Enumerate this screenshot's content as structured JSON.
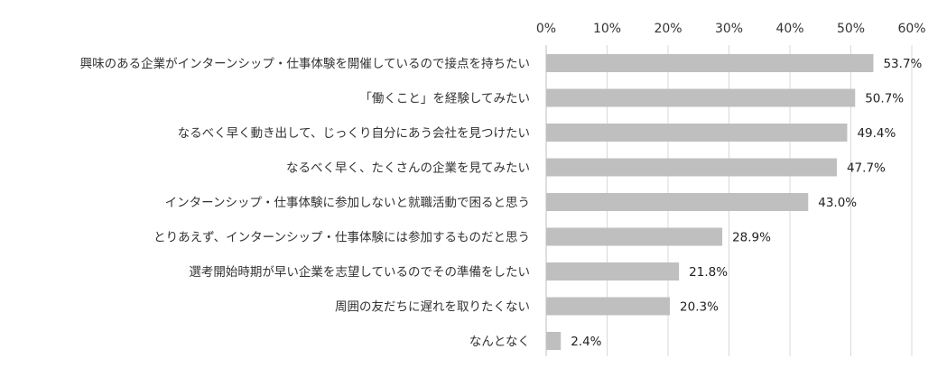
{
  "chart_data": {
    "type": "bar",
    "orientation": "horizontal",
    "categories": [
      "興味のある企業がインターンシップ・仕事体験を開催しているので接点を持ちたい",
      "「働くこと」を経験してみたい",
      "なるべく早く動き出して、じっくり自分にあう会社を見つけたい",
      "なるべく早く、たくさんの企業を見てみたい",
      "インターンシップ・仕事体験に参加しないと就職活動で困ると思う",
      "とりあえず、インターンシップ・仕事体験には参加するものだと思う",
      "選考開始時期が早い企業を志望しているのでその準備をしたい",
      "周囲の友だちに遅れを取りたくない",
      "なんとなく"
    ],
    "values": [
      53.7,
      50.7,
      49.4,
      47.7,
      43.0,
      28.9,
      21.8,
      20.3,
      2.4
    ],
    "value_labels": [
      "53.7%",
      "50.7%",
      "49.4%",
      "47.7%",
      "43.0%",
      "28.9%",
      "21.8%",
      "20.3%",
      "2.4%"
    ],
    "xlim": [
      0,
      60
    ],
    "xticks": [
      0,
      10,
      20,
      30,
      40,
      50,
      60
    ],
    "xtick_labels": [
      "0%",
      "10%",
      "20%",
      "30%",
      "40%",
      "50%",
      "60%"
    ],
    "x_axis_position": "top",
    "grid": true,
    "legend": "none",
    "title": "",
    "xlabel": "",
    "ylabel": "",
    "bar_color": "#bfbfbf"
  }
}
